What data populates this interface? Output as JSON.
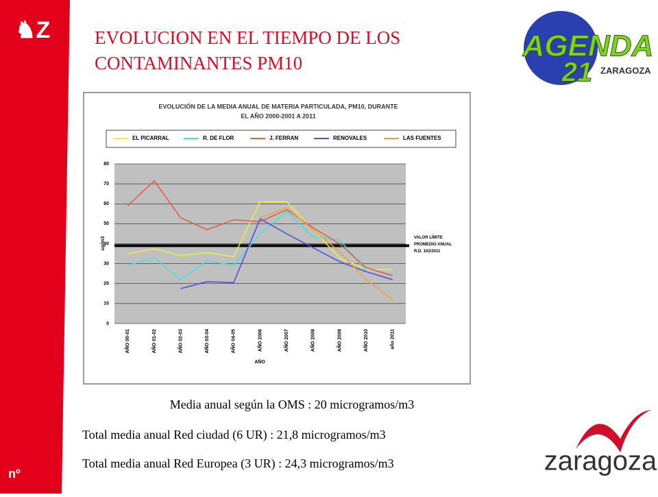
{
  "slide": {
    "title_lines": [
      "EVOLUCION EN EL TIEMPO DE LOS",
      "CONTAMINANTES PM10"
    ],
    "corner": "nº",
    "logo_top": {
      "word": "AGENDA",
      "number": "21",
      "city": "ZARAGOZA"
    },
    "logo_bottom": "zaragoza",
    "notes": [
      "Media anual según la OMS : 20 microgramos/m3",
      "Total media anual Red ciudad (6 UR) : 21,8 microgramos/m3",
      "Total media anual Red Europea (3 UR) : 24,3 microgramos/m3"
    ]
  },
  "chart_data": {
    "type": "line",
    "title_lines": [
      "EVOLUCIÓN DE LA MEDIA ANUAL DE MATERIA PARTICULADA, PM10, DURANTE",
      "EL AÑO 2000-2001 A 2011"
    ],
    "x_label": "AÑO",
    "y_label": "ug/m3",
    "categories": [
      "AÑO 00-01",
      "AÑO 01-02",
      "AÑO 02-03",
      "AÑO 03-04",
      "AÑO 04-05",
      "AÑO 2006",
      "AÑO 2007",
      "AÑO 2008",
      "AÑO 2009",
      "AÑO 2010",
      "año 2011"
    ],
    "ylim": [
      0,
      80
    ],
    "yticks": [
      0,
      10,
      20,
      30,
      40,
      50,
      60,
      70,
      80
    ],
    "grid": true,
    "series": [
      {
        "name": "EL PICARRAL",
        "color": "#eeee44",
        "values": [
          35,
          37.5,
          34,
          35.5,
          33.5,
          61,
          61,
          47,
          33,
          27,
          27
        ]
      },
      {
        "name": "R. DE FLOR",
        "color": "#44e0e0",
        "values": [
          29,
          33,
          22,
          31.5,
          29,
          45,
          56,
          43.5,
          42,
          26.5,
          null
        ]
      },
      {
        "name": "J. FERRAN",
        "color": "#e06040",
        "values": [
          59,
          71.5,
          53,
          47,
          52,
          51,
          57,
          48,
          40,
          28,
          24
        ]
      },
      {
        "name": "RENOVALES",
        "color": "#5050e0",
        "values": [
          null,
          null,
          17.5,
          21,
          20.5,
          52.5,
          45,
          38,
          31,
          26,
          22
        ]
      },
      {
        "name": "LAS FUENTES",
        "color": "#f0a040",
        "values": [
          null,
          null,
          null,
          null,
          null,
          53,
          58,
          47,
          36,
          22,
          12
        ]
      }
    ],
    "reference_line": {
      "value": 39,
      "color": "#000000",
      "label_lines": [
        "VALOR LÍMITE",
        "PROMEDIO ANUAL",
        "R.D. 102/2011"
      ]
    }
  }
}
